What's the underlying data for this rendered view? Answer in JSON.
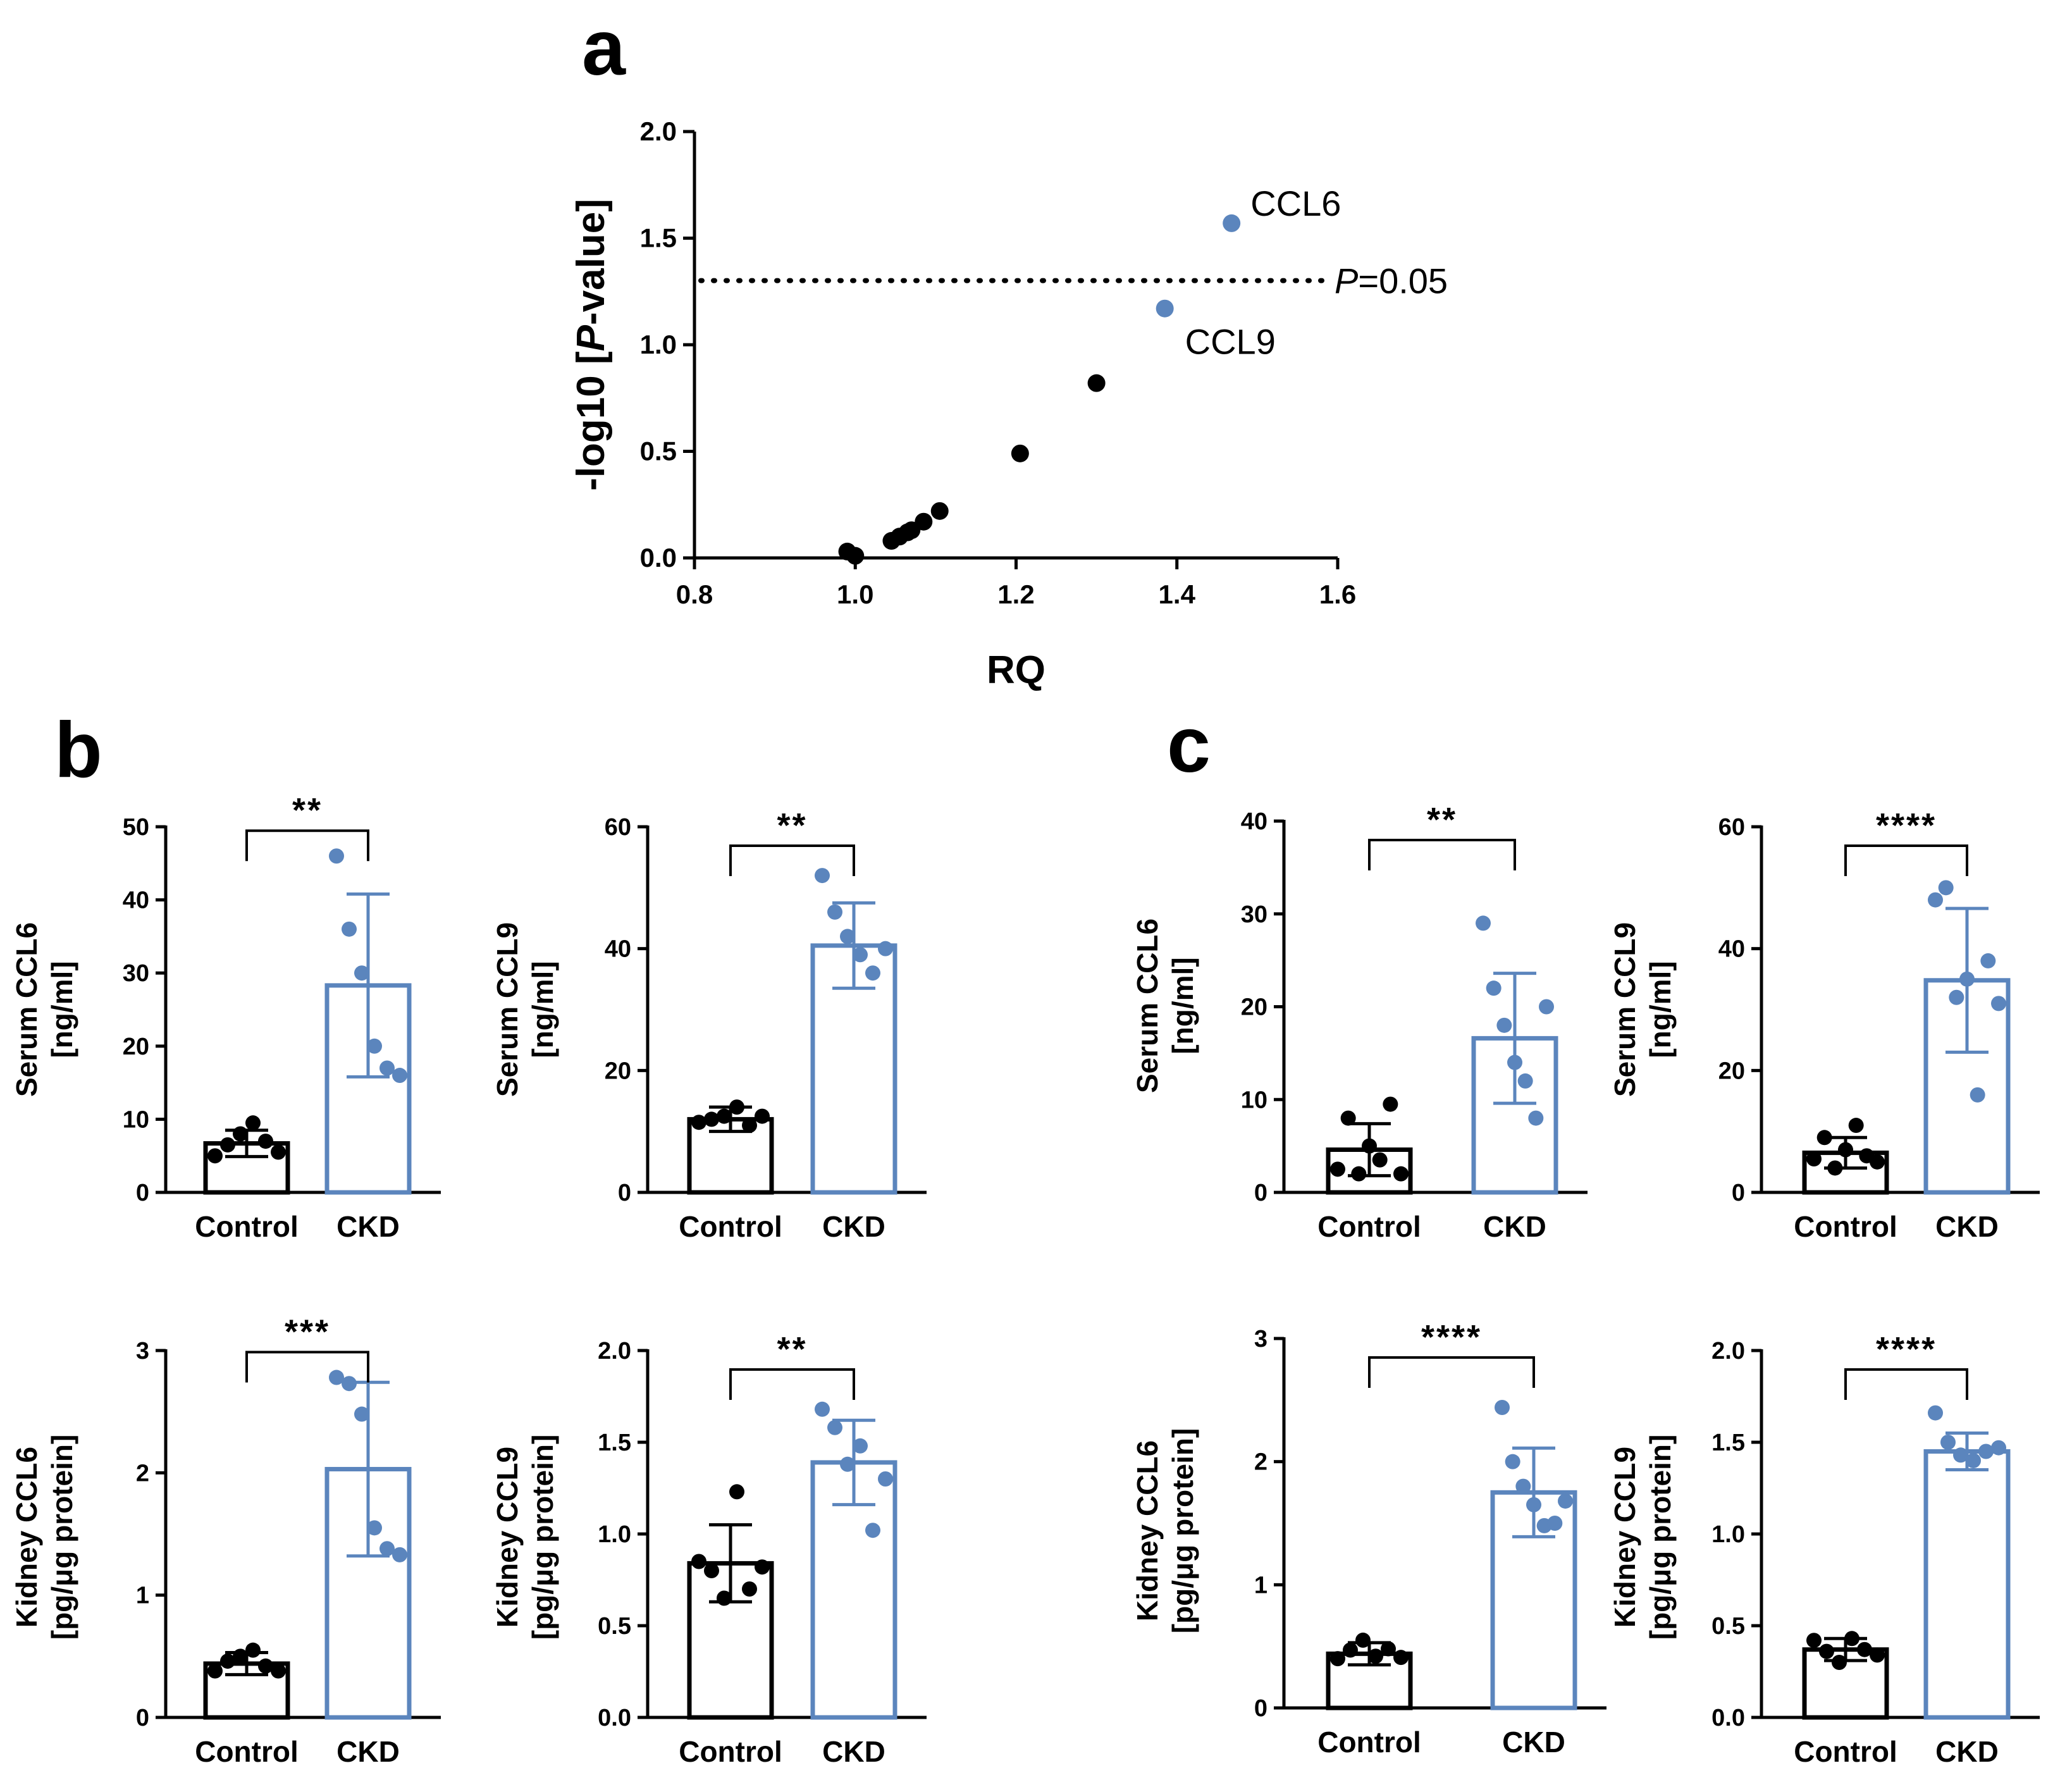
{
  "colors": {
    "black": "#000000",
    "blue": "#5B85BD"
  },
  "chart_data": [
    {
      "id": "a",
      "panel_label": "a",
      "type": "scatter",
      "xlabel": "RQ",
      "ylabel_parts": [
        "-log10 [",
        "P",
        "-value]"
      ],
      "xlim": [
        0.8,
        1.6
      ],
      "ylim": [
        0,
        2.0
      ],
      "x_ticks": [
        "0.8",
        "1.0",
        "1.2",
        "1.4",
        "1.6"
      ],
      "y_ticks": [
        "0.0",
        "0.5",
        "1.0",
        "1.5",
        "2.0"
      ],
      "threshold": {
        "y": 1.301,
        "label_italic": "P",
        "label_rest": "=0.05"
      },
      "points": [
        {
          "x": 0.99,
          "y": 0.03,
          "highlight": false
        },
        {
          "x": 1.0,
          "y": 0.01,
          "highlight": false
        },
        {
          "x": 1.045,
          "y": 0.08,
          "highlight": false
        },
        {
          "x": 1.055,
          "y": 0.1,
          "highlight": false
        },
        {
          "x": 1.065,
          "y": 0.12,
          "highlight": false
        },
        {
          "x": 1.07,
          "y": 0.13,
          "highlight": false
        },
        {
          "x": 1.085,
          "y": 0.17,
          "highlight": false
        },
        {
          "x": 1.105,
          "y": 0.22,
          "highlight": false
        },
        {
          "x": 1.205,
          "y": 0.49,
          "highlight": false
        },
        {
          "x": 1.3,
          "y": 0.82,
          "highlight": false
        },
        {
          "x": 1.385,
          "y": 1.17,
          "highlight": true,
          "label": "CCL9"
        },
        {
          "x": 1.468,
          "y": 1.57,
          "highlight": true,
          "label": "CCL6"
        }
      ]
    },
    {
      "id": "b1",
      "panel_label": "b",
      "type": "bar",
      "ylabel": [
        "Serum CCL6",
        "[ng/ml]"
      ],
      "ylim": [
        0,
        50
      ],
      "y_ticks": [
        0,
        10,
        20,
        30,
        40,
        50
      ],
      "y_tick_labels": [
        "0",
        "10",
        "20",
        "30",
        "40",
        "50"
      ],
      "categories": [
        "Control",
        "CKD"
      ],
      "significance": "**",
      "series": [
        {
          "values": [
            6.7,
            28.3
          ],
          "sd": [
            1.8,
            12.5
          ]
        }
      ],
      "points": [
        [
          5,
          6.5,
          8,
          9.5,
          7,
          5.5
        ],
        [
          46,
          36,
          30,
          20,
          17,
          16
        ]
      ]
    },
    {
      "id": "b2",
      "type": "bar",
      "ylabel": [
        "Serum CCL9",
        "[ng/ml]"
      ],
      "ylim": [
        0,
        60
      ],
      "y_ticks": [
        0,
        20,
        40,
        60
      ],
      "y_tick_labels": [
        "0",
        "20",
        "40",
        "60"
      ],
      "categories": [
        "Control",
        "CKD"
      ],
      "significance": "**",
      "series": [
        {
          "values": [
            12,
            40.5
          ],
          "sd": [
            2,
            7
          ]
        }
      ],
      "points": [
        [
          11.5,
          12,
          12.5,
          14,
          11,
          12.5
        ],
        [
          52,
          46,
          42,
          39,
          36,
          40
        ]
      ]
    },
    {
      "id": "b3",
      "type": "bar",
      "ylabel": [
        "Kidney CCL6",
        "[pg/μg protein]"
      ],
      "ylim": [
        0,
        3
      ],
      "y_ticks": [
        0,
        1,
        2,
        3
      ],
      "y_tick_labels": [
        "0",
        "1",
        "2",
        "3"
      ],
      "categories": [
        "Control",
        "CKD"
      ],
      "significance": "***",
      "series": [
        {
          "values": [
            0.44,
            2.03
          ],
          "sd": [
            0.09,
            0.71
          ]
        }
      ],
      "points": [
        [
          0.38,
          0.46,
          0.5,
          0.55,
          0.42,
          0.38
        ],
        [
          2.78,
          2.73,
          2.48,
          1.55,
          1.38,
          1.33
        ]
      ]
    },
    {
      "id": "b4",
      "type": "bar",
      "ylabel": [
        "Kidney CCL9",
        "[pg/μg protein]"
      ],
      "ylim": [
        0,
        2.0
      ],
      "y_ticks": [
        0,
        0.5,
        1.0,
        1.5,
        2.0
      ],
      "y_tick_labels": [
        "0.0",
        "0.5",
        "1.0",
        "1.5",
        "2.0"
      ],
      "categories": [
        "Control",
        "CKD"
      ],
      "significance": "**",
      "series": [
        {
          "values": [
            0.84,
            1.39
          ],
          "sd": [
            0.21,
            0.23
          ]
        }
      ],
      "points": [
        [
          0.85,
          0.8,
          0.65,
          1.23,
          0.7,
          0.82
        ],
        [
          1.68,
          1.58,
          1.38,
          1.48,
          1.02,
          1.3
        ]
      ]
    },
    {
      "id": "c1",
      "panel_label": "c",
      "type": "bar",
      "ylabel": [
        "Serum CCL6",
        "[ng/ml]"
      ],
      "ylim": [
        0,
        40
      ],
      "y_ticks": [
        0,
        10,
        20,
        30,
        40
      ],
      "y_tick_labels": [
        "0",
        "10",
        "20",
        "30",
        "40"
      ],
      "categories": [
        "Control",
        "CKD"
      ],
      "significance": "**",
      "series": [
        {
          "values": [
            4.6,
            16.6
          ],
          "sd": [
            2.8,
            7
          ]
        }
      ],
      "points": [
        [
          2.5,
          8,
          2,
          5,
          3.5,
          9.5,
          2
        ],
        [
          29,
          22,
          18,
          14,
          12,
          8,
          20
        ]
      ]
    },
    {
      "id": "c2",
      "type": "bar",
      "ylabel": [
        "Serum CCL9",
        "[ng/ml]"
      ],
      "ylim": [
        0,
        60
      ],
      "y_ticks": [
        0,
        20,
        40,
        60
      ],
      "y_tick_labels": [
        "0",
        "20",
        "40",
        "60"
      ],
      "categories": [
        "Control",
        "CKD"
      ],
      "significance": "****",
      "series": [
        {
          "values": [
            6.5,
            34.8
          ],
          "sd": [
            2.5,
            11.8
          ]
        }
      ],
      "points": [
        [
          5.5,
          9,
          4,
          7,
          11,
          6,
          5
        ],
        [
          48,
          50,
          32,
          35,
          16,
          38,
          31
        ]
      ]
    },
    {
      "id": "c3",
      "type": "bar",
      "ylabel": [
        "Kidney CCL6",
        "[pg/μg protein]"
      ],
      "ylim": [
        0,
        3
      ],
      "y_ticks": [
        0,
        1,
        2,
        3
      ],
      "y_tick_labels": [
        "0",
        "1",
        "2",
        "3"
      ],
      "categories": [
        "Control",
        "CKD"
      ],
      "significance": "****",
      "series": [
        {
          "values": [
            0.44,
            1.75
          ],
          "sd": [
            0.09,
            0.36
          ]
        }
      ],
      "points": [
        [
          0.4,
          0.47,
          0.55,
          0.42,
          0.48,
          0.41
        ],
        [
          2.44,
          2.0,
          1.8,
          1.65,
          1.48,
          1.5,
          1.68
        ]
      ]
    },
    {
      "id": "c4",
      "type": "bar",
      "ylabel": [
        "Kidney CCL9",
        "[pg/μg protein]"
      ],
      "ylim": [
        0,
        2.0
      ],
      "y_ticks": [
        0,
        0.5,
        1.0,
        1.5,
        2.0
      ],
      "y_tick_labels": [
        "0.0",
        "0.5",
        "1.0",
        "1.5",
        "2.0"
      ],
      "categories": [
        "Control",
        "CKD"
      ],
      "significance": "****",
      "series": [
        {
          "values": [
            0.37,
            1.45
          ],
          "sd": [
            0.06,
            0.1
          ]
        }
      ],
      "points": [
        [
          0.42,
          0.36,
          0.3,
          0.43,
          0.37,
          0.34
        ],
        [
          1.66,
          1.5,
          1.43,
          1.4,
          1.45,
          1.47
        ]
      ]
    }
  ]
}
